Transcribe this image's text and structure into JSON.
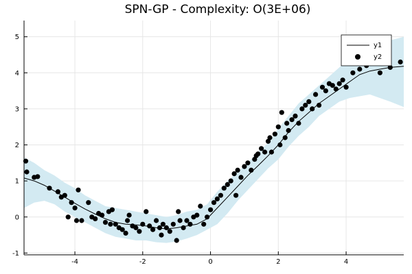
{
  "chart_data": {
    "type": "scatter",
    "title": "SPN-GP - Complexity: O(3E+06)",
    "xlabel": "",
    "ylabel": "",
    "xlim": [
      -5.5,
      5.7
    ],
    "ylim": [
      -1.05,
      5.45
    ],
    "xticks": [
      -4,
      -2,
      0,
      2,
      4
    ],
    "xtick_labels": [
      "-4",
      "-2",
      "0",
      "2",
      "4"
    ],
    "yticks": [
      -1,
      0,
      1,
      2,
      3,
      4,
      5
    ],
    "ytick_labels": [
      "-1",
      "0",
      "1",
      "2",
      "3",
      "4",
      "5"
    ],
    "grid": true,
    "legend_position": "top-right",
    "colors": {
      "band": "#d3eaf2",
      "line": "#000000",
      "points": "#000000",
      "grid": "#e6e6e6"
    },
    "series": [
      {
        "name": "y1",
        "kind": "line",
        "x": [
          -5.5,
          -5.2,
          -4.9,
          -4.6,
          -4.3,
          -4.0,
          -3.7,
          -3.4,
          -3.1,
          -2.8,
          -2.5,
          -2.2,
          -1.9,
          -1.6,
          -1.3,
          -1.0,
          -0.7,
          -0.4,
          -0.1,
          0.2,
          0.5,
          0.8,
          1.1,
          1.4,
          1.7,
          2.0,
          2.3,
          2.6,
          2.9,
          3.2,
          3.5,
          3.8,
          4.1,
          4.4,
          4.7,
          5.0,
          5.3,
          5.7
        ],
        "y": [
          1.08,
          1.0,
          0.88,
          0.72,
          0.55,
          0.38,
          0.22,
          0.08,
          -0.05,
          -0.15,
          -0.2,
          -0.22,
          -0.25,
          -0.3,
          -0.33,
          -0.3,
          -0.25,
          -0.2,
          -0.05,
          0.25,
          0.55,
          0.85,
          1.15,
          1.42,
          1.7,
          2.0,
          2.35,
          2.65,
          2.9,
          3.15,
          3.35,
          3.55,
          3.75,
          3.95,
          4.05,
          4.1,
          4.15,
          4.18
        ]
      },
      {
        "name": "confidence band",
        "kind": "band",
        "x": [
          -5.5,
          -5.2,
          -4.9,
          -4.6,
          -4.3,
          -4.0,
          -3.7,
          -3.4,
          -3.1,
          -2.8,
          -2.5,
          -2.2,
          -1.9,
          -1.6,
          -1.3,
          -1.0,
          -0.7,
          -0.4,
          -0.1,
          0.2,
          0.5,
          0.8,
          1.1,
          1.4,
          1.7,
          2.0,
          2.3,
          2.6,
          2.9,
          3.2,
          3.5,
          3.8,
          4.1,
          4.4,
          4.7,
          5.0,
          5.3,
          5.7
        ],
        "upper": [
          1.65,
          1.5,
          1.3,
          1.15,
          0.95,
          0.8,
          0.6,
          0.45,
          0.3,
          0.25,
          0.2,
          0.15,
          0.1,
          0.05,
          0.0,
          0.05,
          0.15,
          0.2,
          0.35,
          0.7,
          1.0,
          1.25,
          1.5,
          1.8,
          2.05,
          2.45,
          2.8,
          3.15,
          3.4,
          3.65,
          3.9,
          4.15,
          4.4,
          4.55,
          4.7,
          4.8,
          4.9,
          5.0
        ],
        "lower": [
          0.25,
          0.4,
          0.45,
          0.35,
          0.15,
          0.0,
          -0.15,
          -0.3,
          -0.45,
          -0.55,
          -0.6,
          -0.65,
          -0.65,
          -0.7,
          -0.72,
          -0.68,
          -0.6,
          -0.5,
          -0.35,
          -0.2,
          0.1,
          0.45,
          0.75,
          1.05,
          1.35,
          1.6,
          1.95,
          2.25,
          2.5,
          2.8,
          3.0,
          3.2,
          3.3,
          3.35,
          3.4,
          3.3,
          3.2,
          3.05
        ]
      },
      {
        "name": "y2",
        "kind": "scatter",
        "x": [
          -5.45,
          -5.42,
          -5.2,
          -5.1,
          -4.75,
          -4.5,
          -4.4,
          -4.3,
          -4.2,
          -4.1,
          -4.0,
          -3.95,
          -3.9,
          -3.8,
          -3.6,
          -3.5,
          -3.4,
          -3.3,
          -3.2,
          -3.1,
          -3.0,
          -2.95,
          -2.9,
          -2.8,
          -2.7,
          -2.6,
          -2.5,
          -2.45,
          -2.4,
          -2.3,
          -2.2,
          -2.1,
          -2.0,
          -1.9,
          -1.8,
          -1.7,
          -1.6,
          -1.5,
          -1.45,
          -1.4,
          -1.3,
          -1.2,
          -1.1,
          -1.0,
          -0.95,
          -0.9,
          -0.8,
          -0.7,
          -0.6,
          -0.5,
          -0.4,
          -0.3,
          -0.2,
          -0.1,
          0.0,
          0.1,
          0.2,
          0.3,
          0.4,
          0.5,
          0.6,
          0.7,
          0.75,
          0.8,
          0.9,
          1.0,
          1.1,
          1.2,
          1.3,
          1.35,
          1.4,
          1.5,
          1.6,
          1.7,
          1.75,
          1.8,
          1.9,
          2.0,
          2.05,
          2.1,
          2.2,
          2.25,
          2.3,
          2.4,
          2.5,
          2.6,
          2.7,
          2.8,
          2.9,
          3.0,
          3.1,
          3.2,
          3.3,
          3.4,
          3.5,
          3.6,
          3.7,
          3.8,
          3.9,
          4.0,
          4.2,
          4.4,
          4.6,
          4.8,
          5.0,
          5.3,
          5.6
        ],
        "y": [
          1.55,
          1.25,
          1.1,
          1.12,
          0.8,
          0.7,
          0.55,
          0.6,
          0.0,
          0.4,
          0.25,
          -0.1,
          0.75,
          -0.1,
          0.4,
          0.0,
          -0.05,
          0.1,
          0.05,
          -0.15,
          0.15,
          -0.2,
          0.2,
          -0.2,
          -0.3,
          -0.35,
          -0.45,
          -0.1,
          0.05,
          -0.25,
          -0.3,
          -0.4,
          -0.2,
          0.15,
          -0.25,
          -0.35,
          -0.1,
          -0.3,
          -0.5,
          -0.2,
          -0.3,
          -0.4,
          -0.2,
          -0.65,
          0.15,
          -0.1,
          -0.3,
          -0.1,
          -0.2,
          0.0,
          0.05,
          0.3,
          -0.2,
          0.0,
          0.2,
          0.4,
          0.5,
          0.6,
          0.8,
          0.9,
          1.0,
          1.2,
          0.6,
          1.3,
          1.1,
          1.4,
          1.5,
          1.3,
          1.6,
          1.7,
          1.75,
          1.9,
          1.8,
          2.1,
          2.2,
          1.8,
          2.3,
          2.5,
          2.0,
          2.9,
          2.2,
          2.6,
          2.4,
          2.7,
          2.8,
          2.6,
          3.0,
          3.1,
          3.2,
          3.0,
          3.4,
          3.1,
          3.6,
          3.5,
          3.7,
          3.65,
          3.55,
          3.7,
          3.8,
          3.6,
          4.0,
          4.1,
          4.2,
          4.3,
          4.0,
          4.15,
          4.3
        ]
      }
    ]
  }
}
